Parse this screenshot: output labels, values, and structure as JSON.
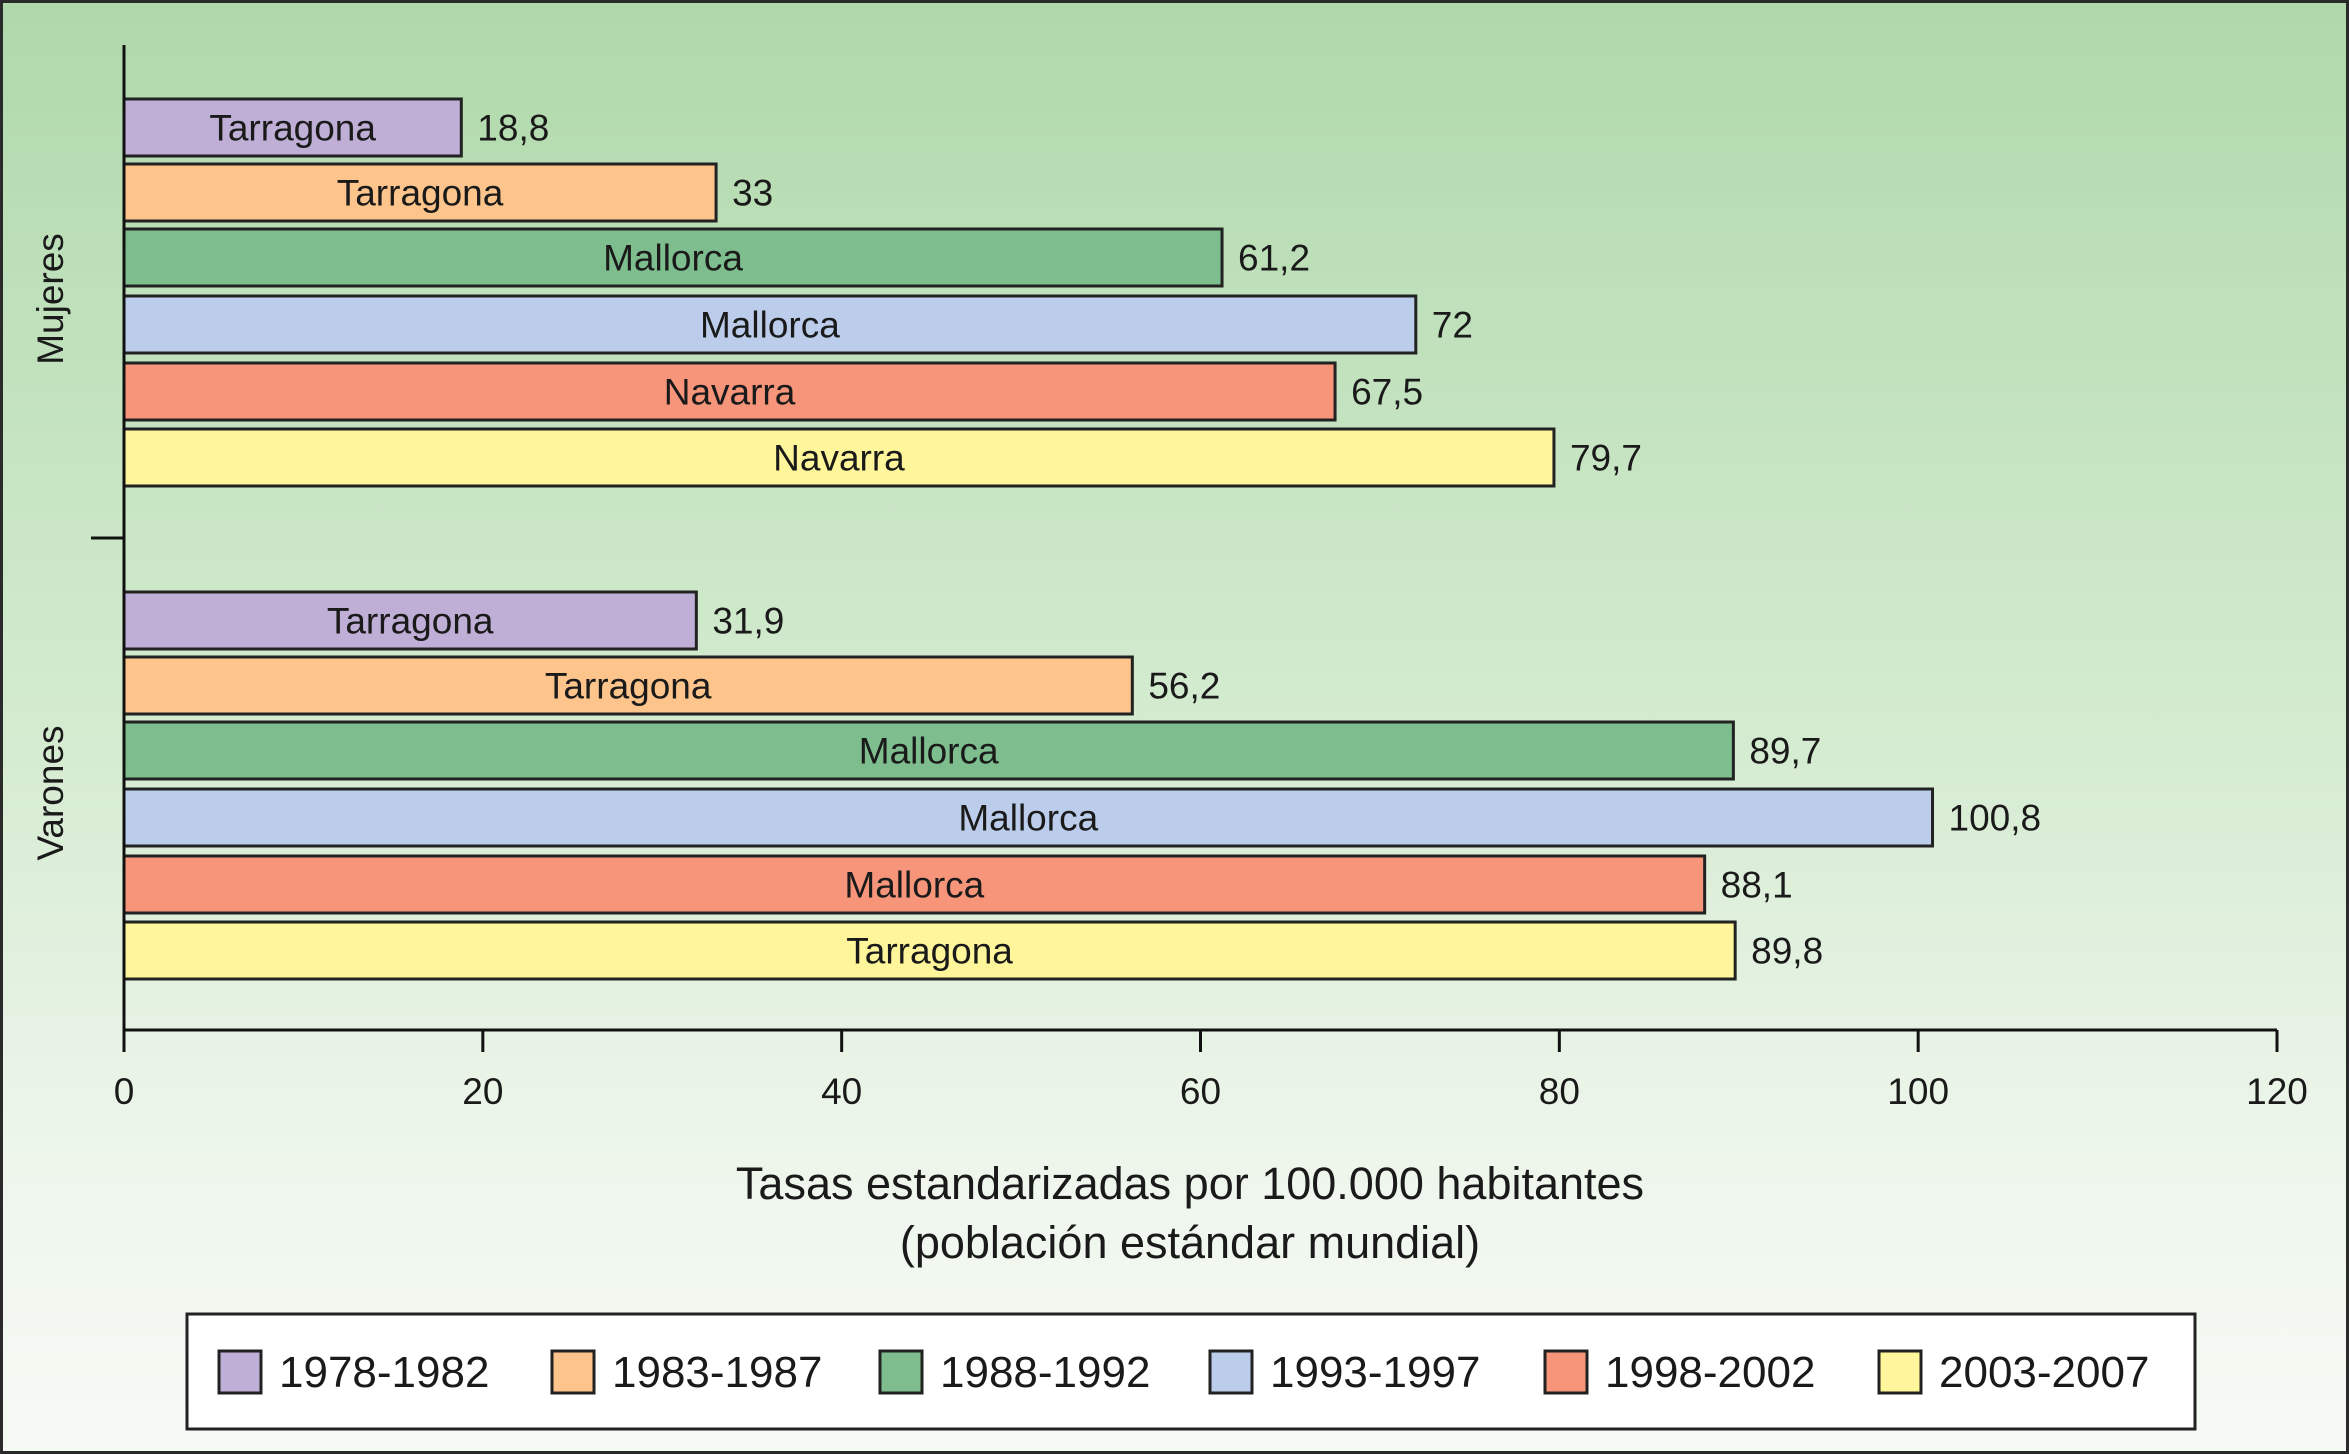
{
  "chart_data": {
    "type": "bar",
    "orientation": "horizontal",
    "xlabel": [
      "Tasas estandarizadas por 100.000 habitantes",
      "(población estándar mundial)"
    ],
    "xlim": [
      0,
      120
    ],
    "xticks": [
      0,
      20,
      40,
      60,
      80,
      100,
      120
    ],
    "grid": false,
    "legend_position": "bottom",
    "series": [
      {
        "name": "1978-1982",
        "color": "#bfafd6"
      },
      {
        "name": "1983-1987",
        "color": "#fdc58b"
      },
      {
        "name": "1988-1992",
        "color": "#7dbd8e"
      },
      {
        "name": "1993-1997",
        "color": "#bccdec"
      },
      {
        "name": "1998-2002",
        "color": "#f7957a"
      },
      {
        "name": "2003-2007",
        "color": "#fff59a"
      }
    ],
    "groups": [
      {
        "name": "Mujeres",
        "bars": [
          {
            "period": "1978-1982",
            "region": "Tarragona",
            "value": 18.8,
            "value_label": "18,8"
          },
          {
            "period": "1983-1987",
            "region": "Tarragona",
            "value": 33,
            "value_label": "33"
          },
          {
            "period": "1988-1992",
            "region": "Mallorca",
            "value": 61.2,
            "value_label": "61,2"
          },
          {
            "period": "1993-1997",
            "region": "Mallorca",
            "value": 72,
            "value_label": "72"
          },
          {
            "period": "1998-2002",
            "region": "Navarra",
            "value": 67.5,
            "value_label": "67,5"
          },
          {
            "period": "2003-2007",
            "region": "Navarra",
            "value": 79.7,
            "value_label": "79,7"
          }
        ]
      },
      {
        "name": "Varones",
        "bars": [
          {
            "period": "1978-1982",
            "region": "Tarragona",
            "value": 31.9,
            "value_label": "31,9"
          },
          {
            "period": "1983-1987",
            "region": "Tarragona",
            "value": 56.2,
            "value_label": "56,2"
          },
          {
            "period": "1988-1992",
            "region": "Mallorca",
            "value": 89.7,
            "value_label": "89,7"
          },
          {
            "period": "1993-1997",
            "region": "Mallorca",
            "value": 100.8,
            "value_label": "100,8"
          },
          {
            "period": "1998-2002",
            "region": "Mallorca",
            "value": 88.1,
            "value_label": "88,1"
          },
          {
            "period": "2003-2007",
            "region": "Tarragona",
            "value": 89.8,
            "value_label": "89,8"
          }
        ]
      }
    ]
  }
}
